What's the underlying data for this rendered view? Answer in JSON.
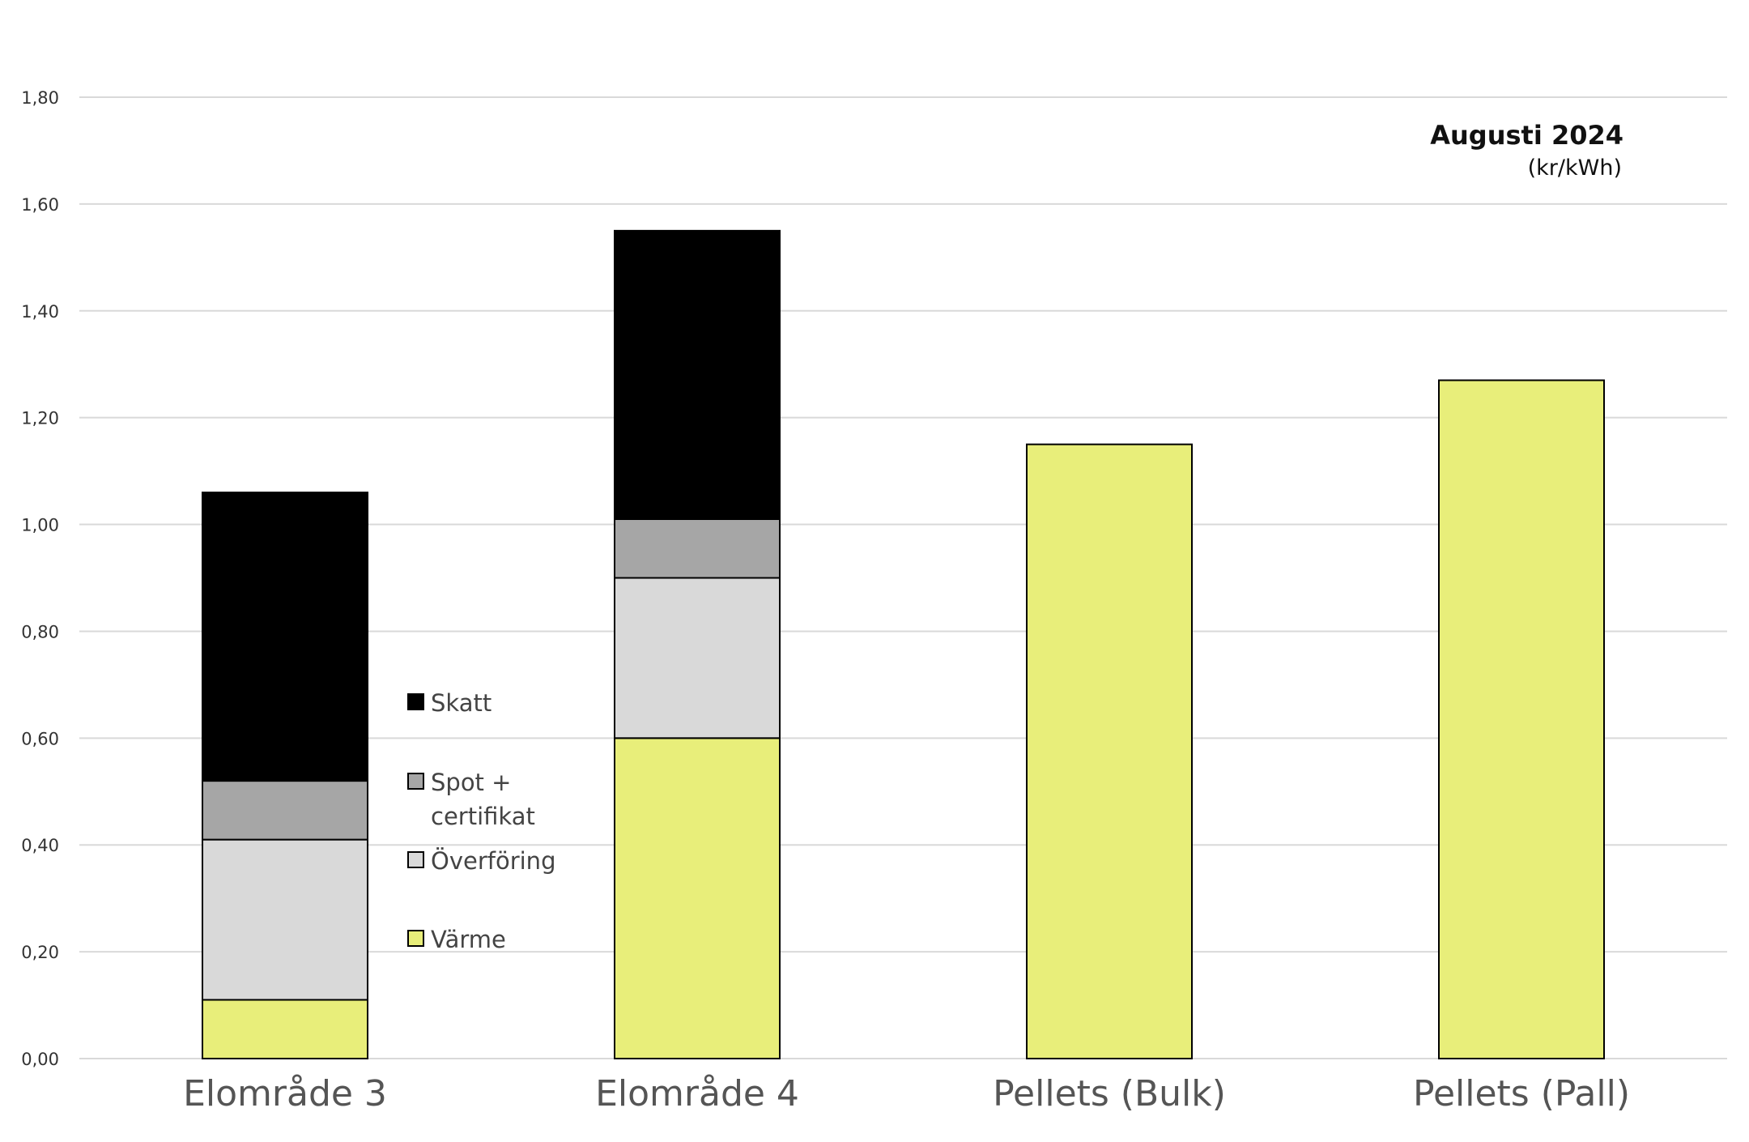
{
  "chart_data": {
    "type": "bar",
    "stacked": true,
    "title": "Augusti 2024",
    "subtitle": "(kr/kWh)",
    "xlabel": "",
    "ylabel": "",
    "ylim": [
      0,
      1.8
    ],
    "ytick_step": 0.2,
    "yticks": [
      "0,00",
      "0,20",
      "0,40",
      "0,60",
      "0,80",
      "1,00",
      "1,20",
      "1,40",
      "1,60",
      "1,80"
    ],
    "grid": true,
    "legend_position": "inside-left",
    "categories": [
      "Elområde 3",
      "Elområde 4",
      "Pellets (Bulk)",
      "Pellets (Pall)"
    ],
    "series": [
      {
        "name": "Värme",
        "color": "#e8ee7a",
        "values": [
          0.11,
          0.6,
          1.15,
          1.27
        ]
      },
      {
        "name": "Överföring",
        "color": "#d9d9d9",
        "values": [
          0.3,
          0.3,
          0,
          0
        ]
      },
      {
        "name": "Spot + certifikat",
        "color": "#a6a6a6",
        "values": [
          0.11,
          0.11,
          0,
          0
        ]
      },
      {
        "name": "Skatt",
        "color": "#000000",
        "values": [
          0.54,
          0.54,
          0,
          0
        ]
      }
    ],
    "legend": [
      {
        "series": "Skatt",
        "lines": [
          "Skatt"
        ]
      },
      {
        "series": "Spot + certifikat",
        "lines": [
          "Spot +",
          "certifikat"
        ]
      },
      {
        "series": "Överföring",
        "lines": [
          "Överföring"
        ]
      },
      {
        "series": "Värme",
        "lines": [
          "Värme"
        ]
      }
    ]
  }
}
